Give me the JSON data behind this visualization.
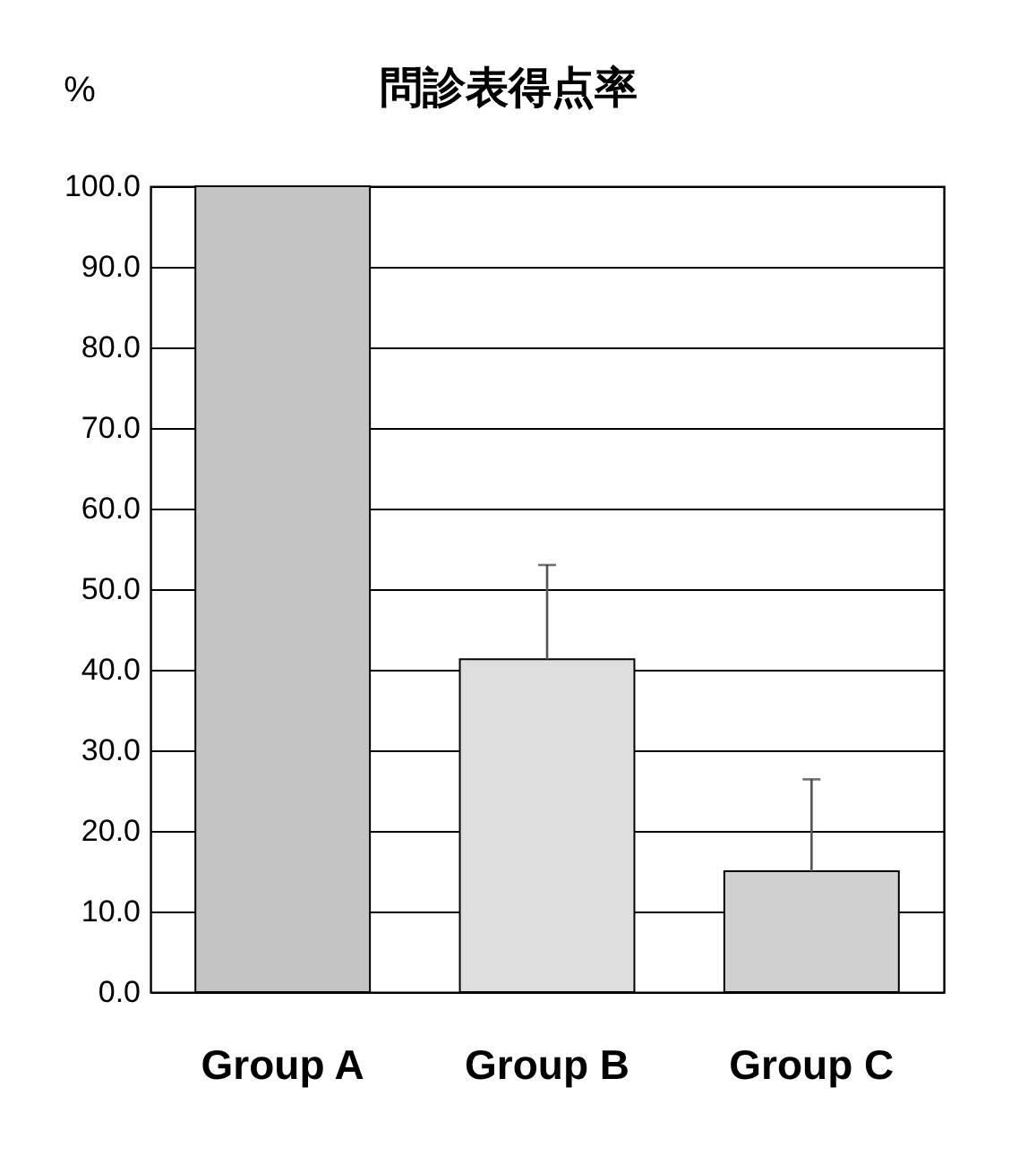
{
  "chart_data": {
    "type": "bar",
    "title": "問診表得点率",
    "ylabel": "%",
    "categories": [
      "Group A",
      "Group B",
      "Group C"
    ],
    "values": [
      100.0,
      41.3,
      15.0
    ],
    "colors": [
      "#c4c4c4",
      "#dedede",
      "#d0d0d0"
    ],
    "errors": [
      null,
      [
        41.3,
        53.0
      ],
      [
        15.0,
        26.4
      ]
    ],
    "ylim": [
      0,
      100
    ],
    "yticks": [
      {
        "value": 0,
        "label": "0.0"
      },
      {
        "value": 10,
        "label": "10.0"
      },
      {
        "value": 20,
        "label": "20.0"
      },
      {
        "value": 30,
        "label": "30.0"
      },
      {
        "value": 40,
        "label": "40.0"
      },
      {
        "value": 50,
        "label": "50.0"
      },
      {
        "value": 60,
        "label": "60.0"
      },
      {
        "value": 70,
        "label": "70.0"
      },
      {
        "value": 80,
        "label": "80.0"
      },
      {
        "value": 90,
        "label": "90.0"
      },
      {
        "value": 100,
        "label": "100.0"
      }
    ],
    "grid": "y"
  }
}
